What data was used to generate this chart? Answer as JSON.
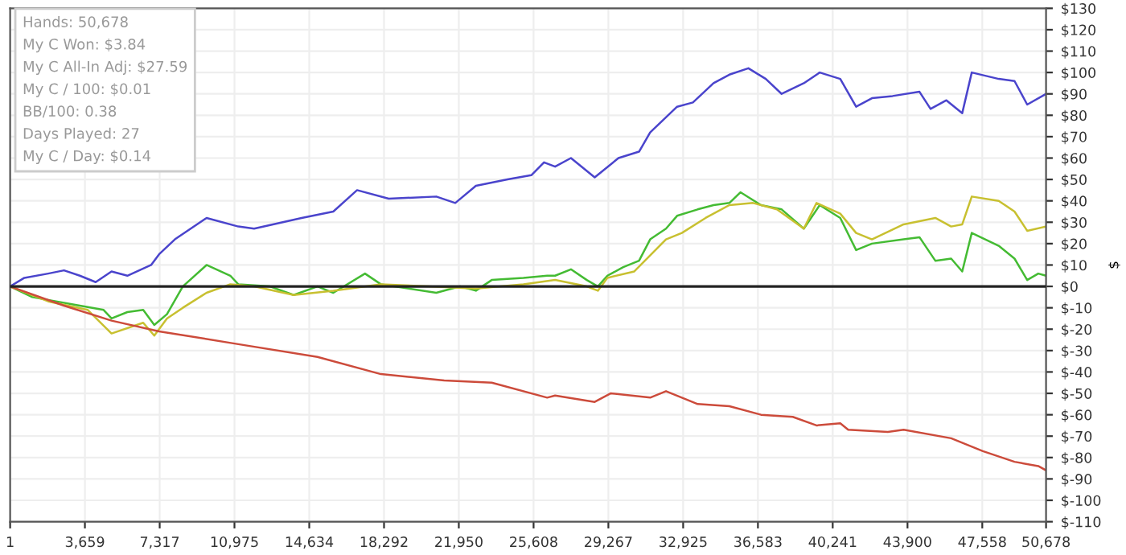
{
  "chart_data": {
    "type": "line",
    "ylabel": "$",
    "annotations": [
      "Hands: 50,678",
      "My C Won: $3.84",
      "My C All-In Adj: $27.59",
      "My C / 100: $0.01",
      "BB/100: 0.38",
      "Days Played: 27",
      "My C / Day: $0.14"
    ],
    "series": [
      {
        "color": "#4a44cc",
        "x": [
          1,
          698,
          1861,
          2636,
          3411,
          4186,
          4961,
          5736,
          6898,
          7286,
          8061,
          9611,
          11161,
          11936,
          14261,
          15811,
          16973,
          18523,
          20848,
          21778,
          22786,
          24336,
          25498,
          26118,
          26661,
          27436,
          28598,
          29761,
          30768,
          31311,
          32628,
          33403,
          34411,
          35186,
          36116,
          36968,
          37743,
          38828,
          39603,
          40611,
          41386,
          42161,
          43168,
          44486,
          45028,
          45803,
          46578,
          47043,
          48361,
          49136,
          49756,
          50678
        ],
        "values": [
          0,
          4,
          6,
          7.5,
          5,
          2,
          7,
          5,
          10,
          15,
          22,
          32,
          28,
          27,
          32,
          35,
          45,
          41,
          42,
          39,
          47,
          50,
          52,
          58,
          56,
          60,
          51,
          60,
          63,
          72,
          84,
          86,
          95,
          99,
          102,
          97,
          90,
          95,
          100,
          97,
          84,
          88,
          89,
          91,
          83,
          87,
          81,
          100,
          97,
          96,
          85,
          90
        ]
      },
      {
        "color": "#44bb33",
        "x": [
          1,
          1086,
          3411,
          4573,
          4961,
          5736,
          6511,
          7053,
          7673,
          8448,
          9611,
          10773,
          11161,
          12711,
          13873,
          15036,
          15811,
          17361,
          18136,
          20848,
          22011,
          22786,
          23561,
          25111,
          26273,
          26661,
          27436,
          28211,
          28753,
          29218,
          29993,
          30768,
          31311,
          32086,
          32628,
          33636,
          34411,
          35186,
          35728,
          36736,
          37743,
          38828,
          39603,
          40611,
          41386,
          42161,
          43711,
          44486,
          45261,
          46036,
          46578,
          47043,
          48361,
          49136,
          49756,
          50298,
          50678
        ],
        "values": [
          0,
          -5,
          -9,
          -11,
          -15,
          -12,
          -11,
          -18,
          -13,
          0,
          10,
          5,
          1,
          0,
          -4,
          0,
          -3,
          6,
          1,
          -3,
          0,
          -2,
          3,
          4,
          5,
          5,
          8,
          3,
          0,
          5,
          9,
          12,
          22,
          27,
          33,
          36,
          38,
          39,
          44,
          38,
          36,
          27,
          38,
          32,
          17,
          20,
          22,
          23,
          12,
          13,
          7,
          25,
          19,
          13,
          3,
          6,
          5
        ]
      },
      {
        "color": "#c8c030",
        "x": [
          1,
          1861,
          3798,
          4961,
          6511,
          7053,
          7673,
          8448,
          9611,
          10773,
          11936,
          13873,
          15811,
          18136,
          20461,
          22786,
          25111,
          26661,
          28211,
          28753,
          29218,
          30536,
          32086,
          32861,
          34023,
          35186,
          36348,
          37511,
          38828,
          39448,
          40611,
          41386,
          42161,
          43711,
          45261,
          46036,
          46578,
          47043,
          48361,
          49136,
          49756,
          50678
        ],
        "values": [
          0,
          -7,
          -11,
          -22,
          -17,
          -23,
          -15,
          -10,
          -3,
          1,
          0,
          -4,
          -2,
          1,
          0,
          -1,
          1,
          3,
          0,
          -2,
          4,
          7,
          22,
          25,
          32,
          38,
          39,
          36,
          27,
          39,
          34,
          25,
          22,
          29,
          32,
          28,
          29,
          42,
          40,
          35,
          26,
          28
        ]
      },
      {
        "color": "#cc4b3b",
        "x": [
          1,
          2636,
          4961,
          7286,
          11161,
          15036,
          18136,
          21236,
          23561,
          26273,
          26661,
          28598,
          29373,
          31311,
          32086,
          33636,
          35186,
          36736,
          38286,
          39448,
          40611,
          40998,
          42936,
          43711,
          46036,
          46811,
          47586,
          49136,
          50298,
          50678
        ],
        "values": [
          0,
          -9,
          -16,
          -21,
          -27,
          -33,
          -41,
          -44,
          -45,
          -52,
          -51,
          -54,
          -50,
          -52,
          -49,
          -55,
          -56,
          -60,
          -61,
          -65,
          -64,
          -67,
          -68,
          -67,
          -71,
          -74,
          -77,
          -82,
          -84,
          -86
        ]
      }
    ],
    "xlim": [
      1,
      50678
    ],
    "ylim": [
      -110,
      130
    ],
    "xticks": [
      1,
      {
        "value": 3659,
        "label": "3,659"
      },
      {
        "value": 7317,
        "label": "7,317"
      },
      {
        "value": 10975,
        "label": "10,975"
      },
      {
        "value": 14634,
        "label": "14,634"
      },
      {
        "value": 18292,
        "label": "18,292"
      },
      {
        "value": 21950,
        "label": "21,950"
      },
      {
        "value": 25608,
        "label": "25,608"
      },
      {
        "value": 29267,
        "label": "29,267"
      },
      {
        "value": 32925,
        "label": "32,925"
      },
      {
        "value": 36583,
        "label": "36,583"
      },
      {
        "value": 40241,
        "label": "40,241"
      },
      {
        "value": 43900,
        "label": "43,900"
      },
      {
        "value": 47558,
        "label": "47,558"
      },
      {
        "value": 50678,
        "label": "50,678"
      }
    ],
    "yticks": [
      {
        "value": -110,
        "label": "$-110"
      },
      {
        "value": -100,
        "label": "$-100"
      },
      {
        "value": -90,
        "label": "$-90"
      },
      {
        "value": -80,
        "label": "$-80"
      },
      {
        "value": -70,
        "label": "$-70"
      },
      {
        "value": -60,
        "label": "$-60"
      },
      {
        "value": -50,
        "label": "$-50"
      },
      {
        "value": -40,
        "label": "$-40"
      },
      {
        "value": -30,
        "label": "$-30"
      },
      {
        "value": -20,
        "label": "$-20"
      },
      {
        "value": -10,
        "label": "$-10"
      },
      {
        "value": 0,
        "label": "$0"
      },
      {
        "value": 10,
        "label": "$10"
      },
      {
        "value": 20,
        "label": "$20"
      },
      {
        "value": 30,
        "label": "$30"
      },
      {
        "value": 40,
        "label": "$40"
      },
      {
        "value": 50,
        "label": "$50"
      },
      {
        "value": 60,
        "label": "$60"
      },
      {
        "value": 70,
        "label": "$70"
      },
      {
        "value": 80,
        "label": "$80"
      },
      {
        "value": 90,
        "label": "$90"
      },
      {
        "value": 100,
        "label": "$100"
      },
      {
        "value": 110,
        "label": "$110"
      },
      {
        "value": 120,
        "label": "$120"
      },
      {
        "value": 130,
        "label": "$130"
      }
    ],
    "ref_lines": [
      {
        "axis": "y",
        "value": 0,
        "color": "#222222"
      }
    ],
    "grid": true,
    "legend": false
  }
}
